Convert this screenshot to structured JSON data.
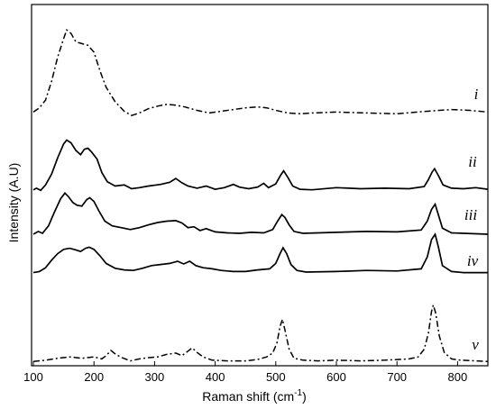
{
  "chart_data": {
    "type": "line",
    "xlabel": "Raman shift (cm",
    "xlabel_sup": "-1",
    "xlabel_end": ")",
    "ylabel": "Intensity (A.U)",
    "xlim": [
      97,
      850
    ],
    "xticks": [
      100,
      200,
      300,
      400,
      500,
      600,
      700,
      800
    ],
    "grid": false,
    "series": [
      {
        "name": "i",
        "style": "dash-dot",
        "offset": 0.845,
        "points": [
          [
            100,
            0.04
          ],
          [
            110,
            0.09
          ],
          [
            120,
            0.18
          ],
          [
            130,
            0.4
          ],
          [
            140,
            0.68
          ],
          [
            150,
            0.9
          ],
          [
            155,
            1.0
          ],
          [
            162,
            0.96
          ],
          [
            170,
            0.86
          ],
          [
            180,
            0.84
          ],
          [
            190,
            0.82
          ],
          [
            200,
            0.74
          ],
          [
            210,
            0.52
          ],
          [
            220,
            0.33
          ],
          [
            235,
            0.16
          ],
          [
            250,
            0.05
          ],
          [
            262,
            0.0
          ],
          [
            275,
            0.03
          ],
          [
            290,
            0.08
          ],
          [
            305,
            0.11
          ],
          [
            320,
            0.13
          ],
          [
            335,
            0.12
          ],
          [
            350,
            0.1
          ],
          [
            370,
            0.06
          ],
          [
            390,
            0.03
          ],
          [
            410,
            0.05
          ],
          [
            430,
            0.07
          ],
          [
            450,
            0.09
          ],
          [
            470,
            0.1
          ],
          [
            485,
            0.09
          ],
          [
            500,
            0.06
          ],
          [
            520,
            0.03
          ],
          [
            540,
            0.02
          ],
          [
            560,
            0.03
          ],
          [
            600,
            0.04
          ],
          [
            650,
            0.03
          ],
          [
            700,
            0.02
          ],
          [
            750,
            0.05
          ],
          [
            790,
            0.07
          ],
          [
            820,
            0.06
          ],
          [
            850,
            0.04
          ]
        ]
      },
      {
        "name": "ii",
        "style": "solid",
        "offset": 0.585,
        "points": [
          [
            100,
            0.03
          ],
          [
            105,
            0.06
          ],
          [
            112,
            0.02
          ],
          [
            120,
            0.12
          ],
          [
            130,
            0.32
          ],
          [
            140,
            0.62
          ],
          [
            150,
            0.88
          ],
          [
            155,
            0.95
          ],
          [
            162,
            0.9
          ],
          [
            170,
            0.76
          ],
          [
            178,
            0.68
          ],
          [
            184,
            0.78
          ],
          [
            190,
            0.8
          ],
          [
            196,
            0.73
          ],
          [
            205,
            0.6
          ],
          [
            213,
            0.35
          ],
          [
            222,
            0.18
          ],
          [
            235,
            0.1
          ],
          [
            250,
            0.12
          ],
          [
            262,
            0.05
          ],
          [
            275,
            0.07
          ],
          [
            290,
            0.1
          ],
          [
            310,
            0.13
          ],
          [
            325,
            0.17
          ],
          [
            335,
            0.24
          ],
          [
            345,
            0.16
          ],
          [
            355,
            0.1
          ],
          [
            370,
            0.06
          ],
          [
            385,
            0.1
          ],
          [
            400,
            0.04
          ],
          [
            415,
            0.07
          ],
          [
            430,
            0.13
          ],
          [
            440,
            0.08
          ],
          [
            455,
            0.05
          ],
          [
            470,
            0.08
          ],
          [
            480,
            0.15
          ],
          [
            488,
            0.07
          ],
          [
            500,
            0.14
          ],
          [
            508,
            0.3
          ],
          [
            513,
            0.38
          ],
          [
            520,
            0.26
          ],
          [
            528,
            0.1
          ],
          [
            540,
            0.04
          ],
          [
            560,
            0.03
          ],
          [
            600,
            0.07
          ],
          [
            640,
            0.05
          ],
          [
            680,
            0.06
          ],
          [
            720,
            0.05
          ],
          [
            745,
            0.09
          ],
          [
            752,
            0.22
          ],
          [
            758,
            0.36
          ],
          [
            762,
            0.42
          ],
          [
            768,
            0.3
          ],
          [
            776,
            0.12
          ],
          [
            790,
            0.06
          ],
          [
            810,
            0.05
          ],
          [
            830,
            0.07
          ],
          [
            850,
            0.04
          ]
        ]
      },
      {
        "name": "iii",
        "style": "solid",
        "offset": 0.435,
        "points": [
          [
            100,
            0.02
          ],
          [
            108,
            0.08
          ],
          [
            115,
            0.04
          ],
          [
            125,
            0.2
          ],
          [
            135,
            0.5
          ],
          [
            145,
            0.78
          ],
          [
            152,
            0.9
          ],
          [
            158,
            0.82
          ],
          [
            165,
            0.7
          ],
          [
            172,
            0.64
          ],
          [
            180,
            0.62
          ],
          [
            188,
            0.76
          ],
          [
            193,
            0.8
          ],
          [
            200,
            0.72
          ],
          [
            208,
            0.52
          ],
          [
            218,
            0.3
          ],
          [
            230,
            0.2
          ],
          [
            245,
            0.16
          ],
          [
            260,
            0.12
          ],
          [
            275,
            0.16
          ],
          [
            290,
            0.22
          ],
          [
            305,
            0.27
          ],
          [
            320,
            0.3
          ],
          [
            335,
            0.31
          ],
          [
            345,
            0.26
          ],
          [
            355,
            0.16
          ],
          [
            365,
            0.18
          ],
          [
            375,
            0.1
          ],
          [
            385,
            0.14
          ],
          [
            400,
            0.07
          ],
          [
            420,
            0.05
          ],
          [
            440,
            0.04
          ],
          [
            460,
            0.06
          ],
          [
            480,
            0.05
          ],
          [
            495,
            0.12
          ],
          [
            503,
            0.3
          ],
          [
            510,
            0.44
          ],
          [
            515,
            0.38
          ],
          [
            522,
            0.22
          ],
          [
            530,
            0.08
          ],
          [
            545,
            0.04
          ],
          [
            570,
            0.05
          ],
          [
            600,
            0.06
          ],
          [
            650,
            0.08
          ],
          [
            700,
            0.07
          ],
          [
            740,
            0.11
          ],
          [
            750,
            0.3
          ],
          [
            757,
            0.55
          ],
          [
            763,
            0.66
          ],
          [
            768,
            0.45
          ],
          [
            775,
            0.15
          ],
          [
            790,
            0.05
          ],
          [
            810,
            0.04
          ],
          [
            830,
            0.03
          ],
          [
            850,
            0.02
          ]
        ]
      },
      {
        "name": "iv",
        "style": "solid",
        "offset": 0.305,
        "points": [
          [
            100,
            0.01
          ],
          [
            110,
            0.03
          ],
          [
            120,
            0.1
          ],
          [
            130,
            0.24
          ],
          [
            140,
            0.36
          ],
          [
            150,
            0.44
          ],
          [
            160,
            0.46
          ],
          [
            170,
            0.43
          ],
          [
            178,
            0.4
          ],
          [
            186,
            0.46
          ],
          [
            192,
            0.48
          ],
          [
            200,
            0.44
          ],
          [
            210,
            0.32
          ],
          [
            220,
            0.18
          ],
          [
            235,
            0.09
          ],
          [
            250,
            0.06
          ],
          [
            265,
            0.05
          ],
          [
            280,
            0.09
          ],
          [
            295,
            0.14
          ],
          [
            310,
            0.16
          ],
          [
            325,
            0.18
          ],
          [
            338,
            0.22
          ],
          [
            348,
            0.17
          ],
          [
            358,
            0.22
          ],
          [
            368,
            0.14
          ],
          [
            380,
            0.1
          ],
          [
            395,
            0.08
          ],
          [
            410,
            0.05
          ],
          [
            430,
            0.03
          ],
          [
            450,
            0.03
          ],
          [
            470,
            0.06
          ],
          [
            490,
            0.08
          ],
          [
            500,
            0.18
          ],
          [
            507,
            0.36
          ],
          [
            512,
            0.47
          ],
          [
            518,
            0.36
          ],
          [
            525,
            0.16
          ],
          [
            535,
            0.05
          ],
          [
            550,
            0.02
          ],
          [
            600,
            0.03
          ],
          [
            650,
            0.05
          ],
          [
            700,
            0.04
          ],
          [
            740,
            0.08
          ],
          [
            750,
            0.3
          ],
          [
            757,
            0.62
          ],
          [
            763,
            0.72
          ],
          [
            768,
            0.5
          ],
          [
            775,
            0.14
          ],
          [
            790,
            0.03
          ],
          [
            810,
            0.01
          ],
          [
            850,
            0.01
          ]
        ]
      },
      {
        "name": "v",
        "style": "dash-dot",
        "offset": 0.0,
        "points": [
          [
            100,
            0.01
          ],
          [
            120,
            0.03
          ],
          [
            140,
            0.06
          ],
          [
            160,
            0.08
          ],
          [
            180,
            0.06
          ],
          [
            200,
            0.08
          ],
          [
            213,
            0.05
          ],
          [
            220,
            0.1
          ],
          [
            228,
            0.18
          ],
          [
            236,
            0.12
          ],
          [
            246,
            0.07
          ],
          [
            260,
            0.02
          ],
          [
            275,
            0.05
          ],
          [
            290,
            0.07
          ],
          [
            305,
            0.08
          ],
          [
            320,
            0.12
          ],
          [
            335,
            0.14
          ],
          [
            345,
            0.1
          ],
          [
            355,
            0.17
          ],
          [
            362,
            0.22
          ],
          [
            370,
            0.15
          ],
          [
            380,
            0.08
          ],
          [
            395,
            0.03
          ],
          [
            420,
            0.02
          ],
          [
            450,
            0.02
          ],
          [
            470,
            0.04
          ],
          [
            485,
            0.08
          ],
          [
            495,
            0.14
          ],
          [
            502,
            0.3
          ],
          [
            507,
            0.55
          ],
          [
            511,
            0.66
          ],
          [
            515,
            0.5
          ],
          [
            522,
            0.2
          ],
          [
            530,
            0.06
          ],
          [
            545,
            0.03
          ],
          [
            570,
            0.02
          ],
          [
            600,
            0.03
          ],
          [
            640,
            0.02
          ],
          [
            680,
            0.03
          ],
          [
            700,
            0.04
          ],
          [
            720,
            0.05
          ],
          [
            735,
            0.08
          ],
          [
            745,
            0.2
          ],
          [
            752,
            0.45
          ],
          [
            757,
            0.78
          ],
          [
            760,
            0.88
          ],
          [
            764,
            0.75
          ],
          [
            770,
            0.4
          ],
          [
            778,
            0.15
          ],
          [
            790,
            0.05
          ],
          [
            805,
            0.03
          ],
          [
            830,
            0.02
          ],
          [
            850,
            0.01
          ]
        ]
      }
    ]
  }
}
